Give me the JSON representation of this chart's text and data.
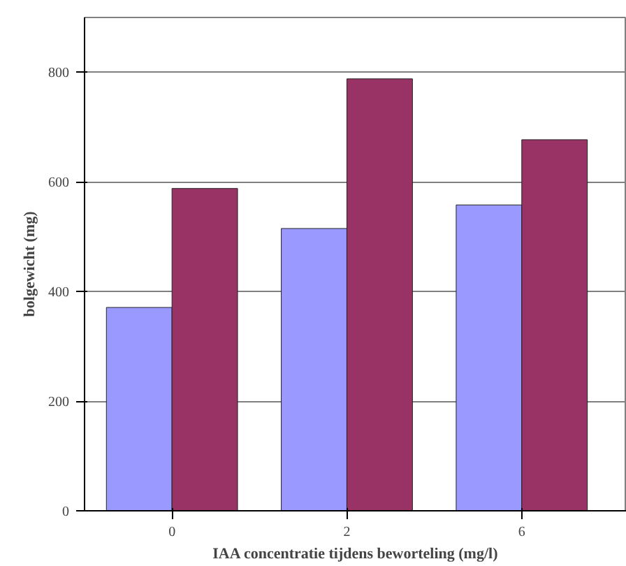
{
  "chart_data": {
    "type": "bar",
    "xlabel": "IAA concentratie tijdens beworteling (mg/l)",
    "ylabel": "bolgewicht (mg)",
    "categories": [
      "0",
      "2",
      "6"
    ],
    "series": [
      {
        "color": "#9999ff",
        "values": [
          371,
          515,
          558
        ]
      },
      {
        "color": "#993366",
        "values": [
          588,
          788,
          677
        ]
      }
    ],
    "ylim": [
      0,
      900
    ],
    "yticks": [
      0,
      200,
      400,
      600,
      800
    ],
    "grid": "y"
  }
}
